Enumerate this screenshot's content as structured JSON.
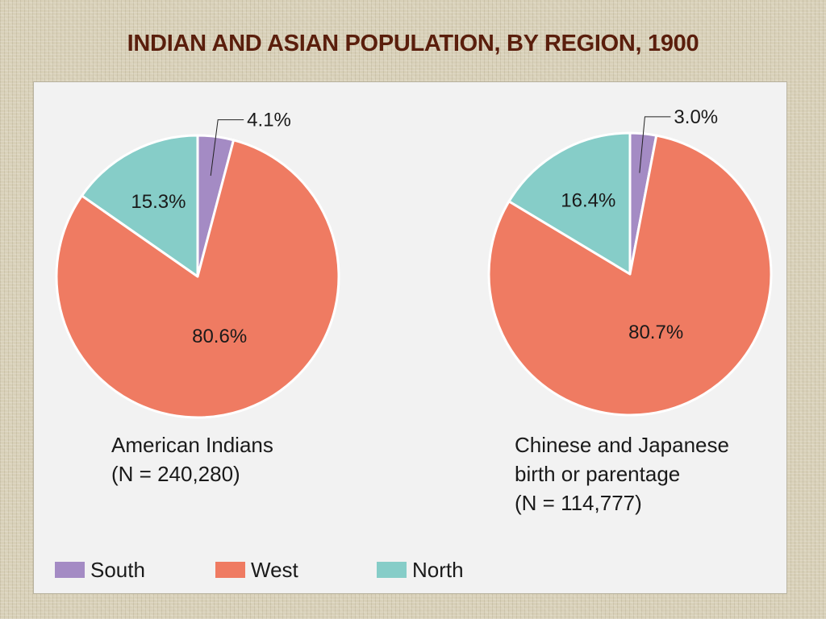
{
  "title": "INDIAN AND ASIAN POPULATION, BY REGION, 1900",
  "colors": {
    "South": "#a48bc4",
    "West": "#ef7b62",
    "North": "#86cdc8",
    "title": "#5a1e0c"
  },
  "chart_data": [
    {
      "type": "pie",
      "title": "American Indians",
      "subtitle": "(N = 240,280)",
      "categories": [
        "South",
        "West",
        "North"
      ],
      "values": [
        4.1,
        80.6,
        15.3
      ],
      "labels": [
        "4.1%",
        "80.6%",
        "15.3%"
      ]
    },
    {
      "type": "pie",
      "title": "Chinese and Japanese birth or parentage",
      "subtitle": "(N = 114,777)",
      "categories": [
        "South",
        "West",
        "North"
      ],
      "values": [
        3.0,
        80.7,
        16.4
      ],
      "labels": [
        "3.0%",
        "80.7%",
        "16.4%"
      ]
    }
  ],
  "legend": {
    "items": [
      "South",
      "West",
      "North"
    ]
  }
}
